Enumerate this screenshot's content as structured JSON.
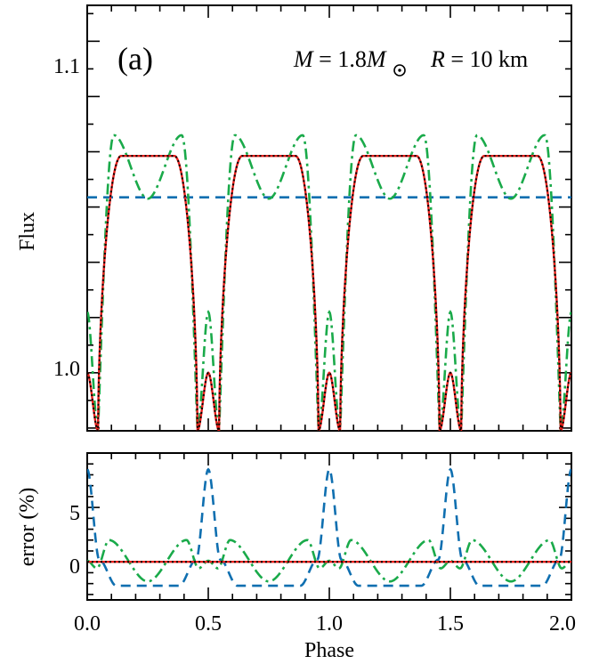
{
  "panel_label": "(a)",
  "annotation": {
    "m_symbol": "M",
    "m_text": " = 1.8",
    "m_unit": "M",
    "r_symbol": "R",
    "r_text": " = 10 km"
  },
  "colors": {
    "axes": "#000000",
    "exact": "#000000",
    "approx": "#e8201c",
    "dashdot": "#1aaa4a",
    "dashed": "#0f6fb0"
  },
  "chart_data": [
    {
      "panel": "top",
      "type": "line",
      "ylabel": "Flux",
      "xlim": [
        0,
        2
      ],
      "ylim": [
        0.979,
        1.133
      ],
      "yticks": [
        {
          "value": 1.0,
          "label": "1.0"
        },
        {
          "value": 1.1,
          "label": "1.1"
        }
      ],
      "profile_params": {
        "pulse_high": 1.0785,
        "pulse_low": 0.979,
        "mid_peak": 1.0,
        "mid_peak_phase": 0.5,
        "period": 0.5
      },
      "series": [
        {
          "id": "exact",
          "style": "dotted",
          "color": "#000000"
        },
        {
          "id": "approx",
          "style": "solid",
          "color": "#e8201c"
        },
        {
          "id": "dashdot",
          "style": "dash-dot",
          "color": "#1aaa4a",
          "peak": 1.086,
          "mid_peak": 1.022
        },
        {
          "id": "dashed",
          "style": "dashed",
          "color": "#0f6fb0",
          "constant": 1.0635
        }
      ]
    },
    {
      "panel": "bottom",
      "type": "line",
      "xlabel": "Phase",
      "ylabel": "error (%)",
      "xlim": [
        0,
        2
      ],
      "ylim": [
        -3.5,
        10
      ],
      "xticks": [
        {
          "value": 0.0,
          "label": "0.0"
        },
        {
          "value": 0.5,
          "label": "0.5"
        },
        {
          "value": 1.0,
          "label": "1.0"
        },
        {
          "value": 1.5,
          "label": "1.5"
        },
        {
          "value": 2.0,
          "label": "2.0"
        }
      ],
      "yticks": [
        {
          "value": 0,
          "label": "0"
        },
        {
          "value": 5,
          "label": "5"
        }
      ],
      "series": [
        {
          "id": "exact-err",
          "style": "dotted",
          "color": "#000000",
          "value": 0
        },
        {
          "id": "approx-err",
          "style": "solid",
          "color": "#e8201c",
          "value": 0
        },
        {
          "id": "dashdot-err",
          "style": "dash-dot",
          "color": "#1aaa4a",
          "max": 2.0,
          "min": -1.8
        },
        {
          "id": "dashed-err",
          "style": "dashed",
          "color": "#0f6fb0",
          "max": 8.5,
          "min": -2.2
        }
      ]
    }
  ]
}
